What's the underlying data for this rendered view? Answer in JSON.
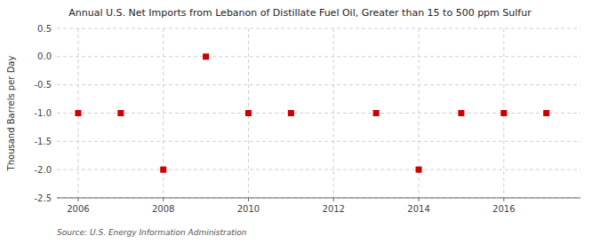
{
  "chart_data": {
    "type": "scatter",
    "title": "Annual U.S. Net Imports from Lebanon of Distillate Fuel Oil, Greater than 15 to 500 ppm Sulfur",
    "y_label": "Thousand Barrels per Day",
    "source": "Source: U.S. Energy Information Administration",
    "x": [
      2006,
      2007,
      2008,
      2009,
      2010,
      2011,
      2013,
      2014,
      2015,
      2016,
      2017
    ],
    "values": [
      -1,
      -1,
      -2,
      0,
      -1,
      -1,
      -1,
      -2,
      -1,
      -1,
      -1
    ],
    "xlim": [
      2005.5,
      2017.8
    ],
    "ylim": [
      -2.5,
      0.5
    ],
    "xticks": [
      2006,
      2008,
      2010,
      2012,
      2014,
      2016
    ],
    "yticks": [
      0.5,
      {
        "value": 0,
        "label": "0.0"
      },
      -0.5,
      {
        "value": -1,
        "label": "-1.0"
      },
      -1.5,
      {
        "value": -2,
        "label": "-2.0"
      },
      -2.5
    ],
    "color": "#cc0000",
    "marker": "square",
    "grid": true
  }
}
